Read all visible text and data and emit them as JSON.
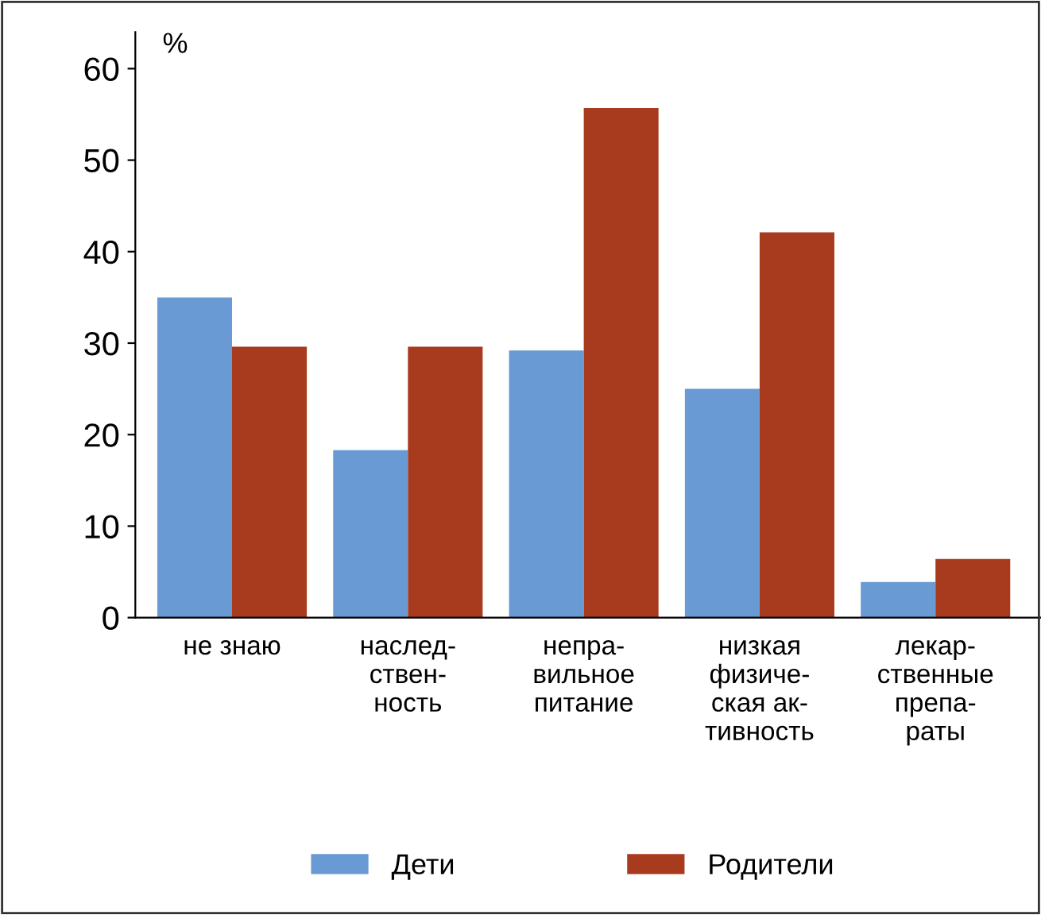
{
  "chart_data": {
    "type": "bar",
    "ylabel": "%",
    "categories": [
      "не знаю",
      "наслед-\nствен-\nность",
      "непра-\nвильное\nпитание",
      "низкая\nфизиче-\nская ак-\nтивность",
      "лекар-\nственные\nпрепа-\nраты"
    ],
    "series": [
      {
        "name": "Дети",
        "color": "#6a9ad4",
        "values": [
          35.0,
          18.3,
          29.2,
          25.0,
          3.9
        ]
      },
      {
        "name": "Родители",
        "color": "#a83a1e",
        "values": [
          29.6,
          29.6,
          55.7,
          42.1,
          6.4
        ]
      }
    ],
    "ylim": [
      0,
      64
    ],
    "yticks": [
      0,
      10,
      20,
      30,
      40,
      50,
      60
    ],
    "grid": false,
    "legend": "bottom"
  }
}
